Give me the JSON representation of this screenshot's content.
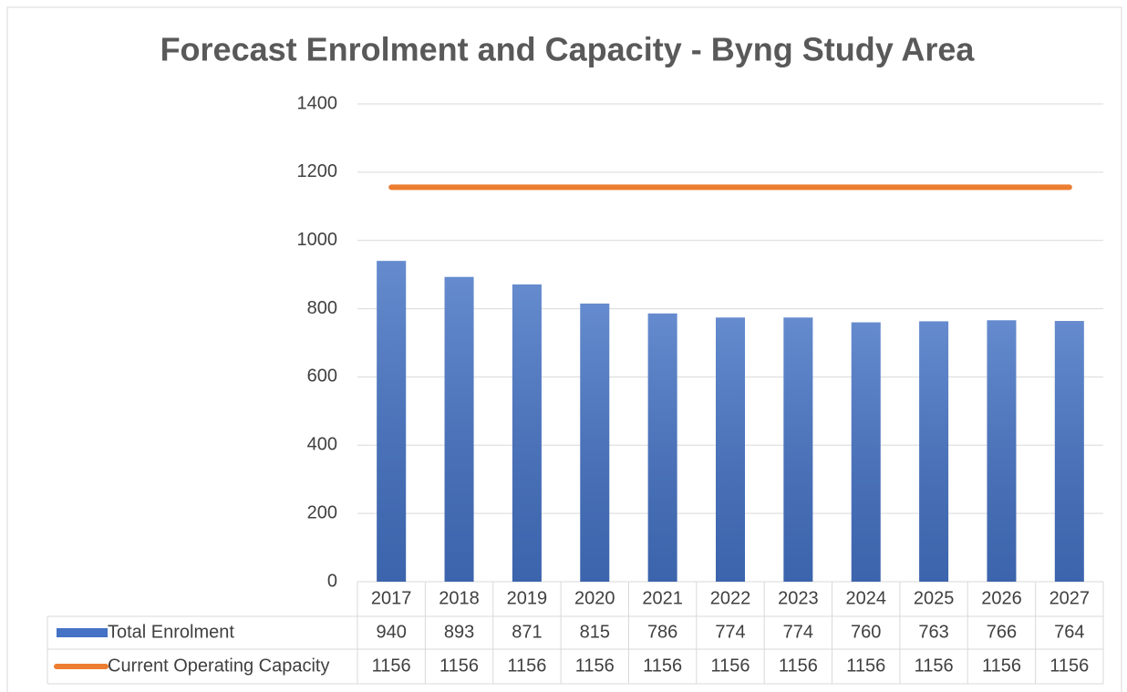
{
  "chart_data": {
    "type": "bar",
    "title": "Forecast Enrolment and Capacity - Byng Study Area",
    "categories": [
      "2017",
      "2018",
      "2019",
      "2020",
      "2021",
      "2022",
      "2023",
      "2024",
      "2025",
      "2026",
      "2027"
    ],
    "series": [
      {
        "name": "Total Enrolment",
        "type": "bar",
        "color": "#4472c4",
        "values": [
          940,
          893,
          871,
          815,
          786,
          774,
          774,
          760,
          763,
          766,
          764
        ]
      },
      {
        "name": "Current Operating Capacity",
        "type": "line",
        "color": "#ed7d31",
        "values": [
          1156,
          1156,
          1156,
          1156,
          1156,
          1156,
          1156,
          1156,
          1156,
          1156,
          1156
        ]
      }
    ],
    "ylim": [
      0,
      1400
    ],
    "yticks": [
      0,
      200,
      400,
      600,
      800,
      1000,
      1200,
      1400
    ],
    "grid": true
  }
}
